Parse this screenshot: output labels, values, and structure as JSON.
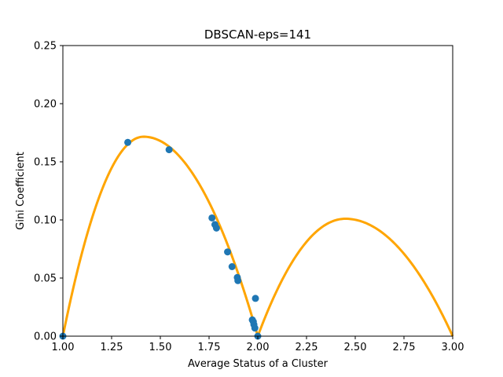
{
  "chart_data": {
    "type": "scatter",
    "title": "DBSCAN-eps=141",
    "xlabel": "Average Status of a Cluster",
    "ylabel": "Gini Coefficient",
    "xlim": [
      1.0,
      3.0
    ],
    "ylim": [
      0.0,
      0.25
    ],
    "xticks": [
      "1.00",
      "1.25",
      "1.50",
      "1.75",
      "2.00",
      "2.25",
      "2.50",
      "2.75",
      "3.00"
    ],
    "yticks": [
      "0.00",
      "0.05",
      "0.10",
      "0.15",
      "0.20",
      "0.25"
    ],
    "grid": false,
    "curve": {
      "color": "#ffa500",
      "segments": [
        {
          "x_range": [
            1.0,
            2.0
          ],
          "peak_x": 1.414,
          "peak_y": 0.1716
        },
        {
          "x_range": [
            2.0,
            3.0
          ],
          "peak_x": 2.449,
          "peak_y": 0.101
        }
      ]
    },
    "points": {
      "color": "#1f77b4",
      "x": [
        1.0,
        1.333,
        1.545,
        1.765,
        1.78,
        1.788,
        1.845,
        1.868,
        1.895,
        1.898,
        1.972,
        1.977,
        1.98,
        1.985,
        1.988,
        2.0
      ],
      "y": [
        0.0,
        0.1667,
        0.1604,
        0.1017,
        0.096,
        0.093,
        0.0725,
        0.0598,
        0.0505,
        0.0478,
        0.014,
        0.0125,
        0.01,
        0.007,
        0.0325,
        0.0
      ]
    }
  }
}
